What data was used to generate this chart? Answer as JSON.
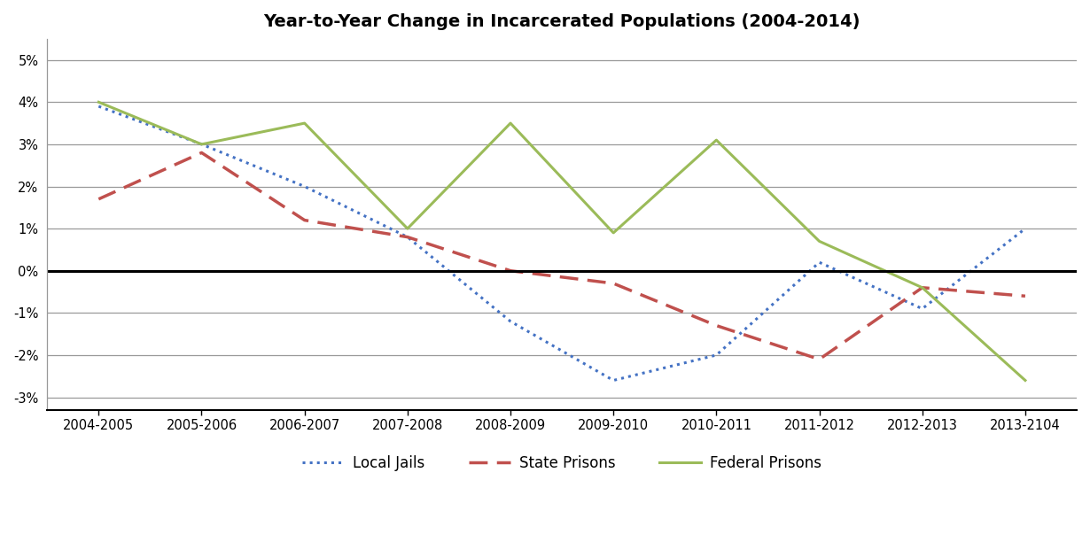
{
  "title": "Year-to-Year Change in Incarcerated Populations (2004-2014)",
  "x_labels": [
    "2004-2005",
    "2005-2006",
    "2006-2007",
    "2007-2008",
    "2008-2009",
    "2009-2010",
    "2010-2011",
    "2011-2012",
    "2012-2013",
    "2013-2104"
  ],
  "local_jails": [
    0.039,
    0.03,
    0.02,
    0.008,
    -0.012,
    -0.026,
    -0.02,
    0.002,
    -0.009,
    0.01
  ],
  "state_prisons": [
    0.017,
    0.028,
    0.012,
    0.008,
    0.0,
    -0.003,
    -0.013,
    -0.021,
    -0.004,
    -0.006
  ],
  "federal_prisons": [
    0.04,
    0.03,
    0.035,
    0.01,
    0.035,
    0.009,
    0.031,
    0.007,
    -0.004,
    -0.026
  ],
  "local_jails_color": "#4472C4",
  "state_prisons_color": "#C0504D",
  "federal_prisons_color": "#9BBB59",
  "ylim": [
    -0.033,
    0.055
  ],
  "yticks": [
    -0.03,
    -0.02,
    -0.01,
    0.0,
    0.01,
    0.02,
    0.03,
    0.04,
    0.05
  ],
  "background_color": "#FFFFFF",
  "plot_bg_color": "#FFFFFF",
  "grid_color": "#999999",
  "spine_color": "#999999"
}
